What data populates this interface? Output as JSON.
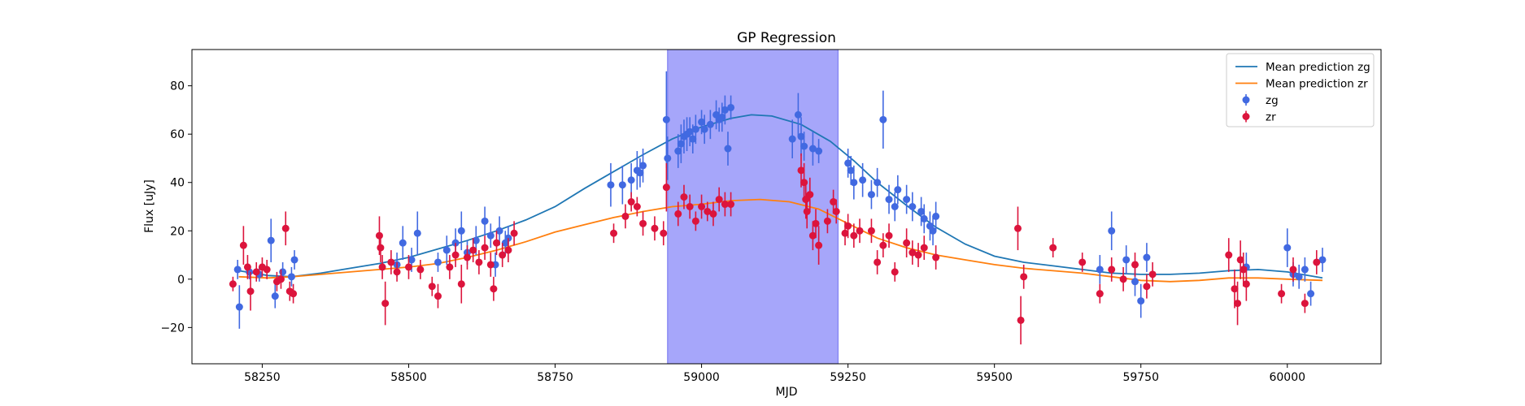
{
  "chart_data": {
    "type": "scatter",
    "title": "GP Regression",
    "xlabel": "MJD",
    "ylabel": "Flux [uJy]",
    "xlim": [
      58130,
      60160
    ],
    "ylim": [
      -35,
      95
    ],
    "xticks": [
      58250,
      58500,
      58750,
      59000,
      59250,
      59500,
      59750,
      60000
    ],
    "yticks": [
      -20,
      0,
      20,
      40,
      60,
      80
    ],
    "grid": false,
    "legend_position": "top-right",
    "shaded_region": {
      "x0": 58942,
      "x1": 59233,
      "color": "#a6a6fa"
    },
    "series": [
      {
        "name": "Mean prediction zg",
        "kind": "line",
        "color": "#1f77b4",
        "x": [
          58210,
          58260,
          58300,
          58350,
          58400,
          58450,
          58500,
          58550,
          58600,
          58650,
          58700,
          58750,
          58800,
          58850,
          58900,
          58950,
          59000,
          59050,
          59085,
          59120,
          59170,
          59220,
          59260,
          59300,
          59350,
          59400,
          59450,
          59500,
          59550,
          59600,
          59650,
          59700,
          59750,
          59800,
          59850,
          59900,
          59950,
          60000,
          60060
        ],
        "y": [
          3.5,
          1.5,
          1.0,
          2.5,
          4.5,
          6.5,
          9.0,
          12.5,
          16.0,
          20.0,
          24.5,
          30.0,
          37.5,
          44.5,
          51.5,
          58.0,
          63.0,
          66.5,
          68.0,
          67.5,
          64.0,
          57.0,
          49.0,
          40.0,
          30.5,
          21.5,
          14.5,
          9.5,
          7.0,
          5.5,
          4.0,
          2.5,
          2.0,
          2.0,
          2.5,
          3.5,
          4.0,
          3.0,
          0.5
        ]
      },
      {
        "name": "Mean prediction zr",
        "kind": "line",
        "color": "#ff7f0e",
        "x": [
          58210,
          58260,
          58300,
          58350,
          58400,
          58450,
          58500,
          58550,
          58600,
          58650,
          58700,
          58750,
          58800,
          58850,
          58900,
          58950,
          59000,
          59050,
          59100,
          59150,
          59200,
          59250,
          59300,
          59350,
          59400,
          59450,
          59500,
          59550,
          59600,
          59650,
          59700,
          59750,
          59800,
          59850,
          59900,
          59950,
          60000,
          60060
        ],
        "y": [
          1.0,
          0.5,
          1.0,
          2.0,
          3.0,
          4.0,
          5.0,
          6.5,
          9.0,
          12.0,
          15.5,
          19.5,
          22.5,
          25.5,
          28.0,
          30.0,
          31.0,
          32.5,
          33.0,
          32.0,
          29.0,
          23.0,
          17.0,
          13.0,
          10.0,
          8.0,
          6.0,
          4.5,
          3.5,
          2.5,
          1.0,
          -0.5,
          -1.0,
          -0.5,
          0.5,
          0.5,
          0.0,
          -0.5
        ]
      },
      {
        "name": "zg",
        "kind": "errorbar",
        "color": "#4169e1",
        "x": [
          58208,
          58211,
          58228,
          58245,
          58265,
          58272,
          58285,
          58300,
          58305,
          58480,
          58490,
          58505,
          58515,
          58550,
          58565,
          58580,
          58590,
          58600,
          58615,
          58630,
          58640,
          58648,
          58655,
          58665,
          58670,
          58845,
          58865,
          58880,
          58890,
          58895,
          58900,
          58940,
          58942,
          58960,
          58965,
          58970,
          58975,
          58980,
          58985,
          58990,
          59000,
          59005,
          59015,
          59025,
          59030,
          59035,
          59040,
          59045,
          59050,
          59155,
          59165,
          59170,
          59175,
          59190,
          59200,
          59250,
          59255,
          59260,
          59275,
          59290,
          59300,
          59310,
          59320,
          59330,
          59335,
          59350,
          59360,
          59375,
          59380,
          59390,
          59395,
          59400,
          59680,
          59700,
          59725,
          59740,
          59750,
          59760,
          59930,
          60000,
          60010,
          60020,
          60030,
          60040,
          60060
        ],
        "y": [
          4,
          -11.5,
          3,
          2,
          16,
          -7,
          3,
          1,
          8,
          6,
          15,
          8,
          19,
          7,
          12,
          15,
          20,
          11,
          16,
          24,
          18,
          6,
          20,
          15,
          17,
          39,
          39,
          41,
          45,
          44,
          47,
          66,
          50,
          53,
          56,
          59,
          60,
          61,
          58,
          62,
          65,
          62,
          64,
          68,
          66,
          67,
          70,
          54,
          71,
          58,
          68,
          59,
          55,
          54,
          53,
          48,
          45,
          40,
          41,
          35,
          40,
          66,
          33,
          30,
          37,
          33,
          30,
          28,
          25,
          22,
          20,
          26,
          4,
          20,
          8,
          -1,
          -9,
          9,
          5,
          13,
          2,
          1,
          4,
          -6,
          8
        ],
        "yerr": [
          4,
          9,
          3,
          3,
          9,
          5,
          4,
          4,
          4,
          5,
          7,
          5,
          9,
          4,
          6,
          6,
          8,
          5,
          6,
          6,
          5,
          5,
          6,
          5,
          5,
          9,
          8,
          7,
          8,
          6,
          7,
          20,
          9,
          7,
          8,
          7,
          7,
          6,
          6,
          6,
          5,
          6,
          6,
          6,
          5,
          6,
          6,
          7,
          5,
          8,
          9,
          8,
          6,
          7,
          5,
          6,
          6,
          7,
          7,
          6,
          6,
          12,
          6,
          6,
          6,
          6,
          6,
          6,
          6,
          6,
          6,
          6,
          6,
          8,
          6,
          6,
          7,
          6,
          6,
          8,
          5,
          5,
          5,
          5,
          5
        ]
      },
      {
        "name": "zr",
        "kind": "errorbar",
        "color": "#dc143c",
        "x": [
          58200,
          58218,
          58225,
          58230,
          58240,
          58250,
          58258,
          58275,
          58282,
          58290,
          58297,
          58303,
          58450,
          58452,
          58455,
          58460,
          58470,
          58480,
          58500,
          58520,
          58540,
          58550,
          58570,
          58580,
          58590,
          58600,
          58610,
          58620,
          58630,
          58640,
          58645,
          58650,
          58660,
          58670,
          58680,
          58850,
          58870,
          58880,
          58890,
          58900,
          58920,
          58935,
          58940,
          58960,
          58970,
          58980,
          58990,
          59000,
          59010,
          59020,
          59030,
          59040,
          59050,
          59170,
          59175,
          59178,
          59180,
          59185,
          59190,
          59195,
          59200,
          59215,
          59225,
          59230,
          59245,
          59250,
          59260,
          59270,
          59290,
          59300,
          59310,
          59320,
          59330,
          59350,
          59360,
          59370,
          59380,
          59400,
          59540,
          59545,
          59550,
          59600,
          59650,
          59680,
          59700,
          59720,
          59740,
          59760,
          59770,
          59900,
          59910,
          59915,
          59920,
          59925,
          59930,
          59990,
          60010,
          60030,
          60050
        ],
        "y": [
          -2,
          14,
          5,
          -5,
          3,
          5,
          4,
          -1,
          0,
          21,
          -5,
          -6,
          18,
          13,
          5,
          -10,
          7,
          3,
          5,
          4,
          -3,
          -7,
          5,
          10,
          -2,
          9,
          12,
          7,
          13,
          6,
          -4,
          15,
          10,
          12,
          19,
          19,
          26,
          32,
          30,
          23,
          21,
          19,
          38,
          27,
          34,
          30,
          24,
          30,
          28,
          27,
          33,
          31,
          31,
          45,
          40,
          33,
          28,
          35,
          18,
          23,
          14,
          24,
          32,
          28,
          19,
          22,
          18,
          20,
          20,
          7,
          14,
          18,
          3,
          15,
          11,
          10,
          13,
          9,
          21,
          -17,
          1,
          13,
          7,
          -6,
          4,
          0,
          6,
          -3,
          2,
          10,
          -4,
          -10,
          8,
          4,
          -2,
          -6,
          4,
          -10,
          7
        ],
        "yerr": [
          3,
          8,
          5,
          8,
          4,
          4,
          4,
          4,
          4,
          7,
          4,
          4,
          8,
          6,
          5,
          9,
          5,
          4,
          5,
          4,
          4,
          5,
          5,
          5,
          8,
          5,
          5,
          5,
          5,
          5,
          5,
          5,
          5,
          5,
          5,
          4,
          5,
          4,
          4,
          5,
          5,
          5,
          10,
          5,
          5,
          5,
          4,
          5,
          4,
          5,
          5,
          5,
          5,
          7,
          8,
          8,
          7,
          7,
          6,
          6,
          8,
          5,
          5,
          5,
          5,
          5,
          5,
          5,
          5,
          5,
          5,
          5,
          4,
          6,
          5,
          5,
          5,
          5,
          9,
          10,
          5,
          4,
          4,
          4,
          5,
          5,
          5,
          5,
          5,
          7,
          8,
          9,
          8,
          7,
          7,
          4,
          5,
          4,
          5
        ]
      }
    ]
  }
}
